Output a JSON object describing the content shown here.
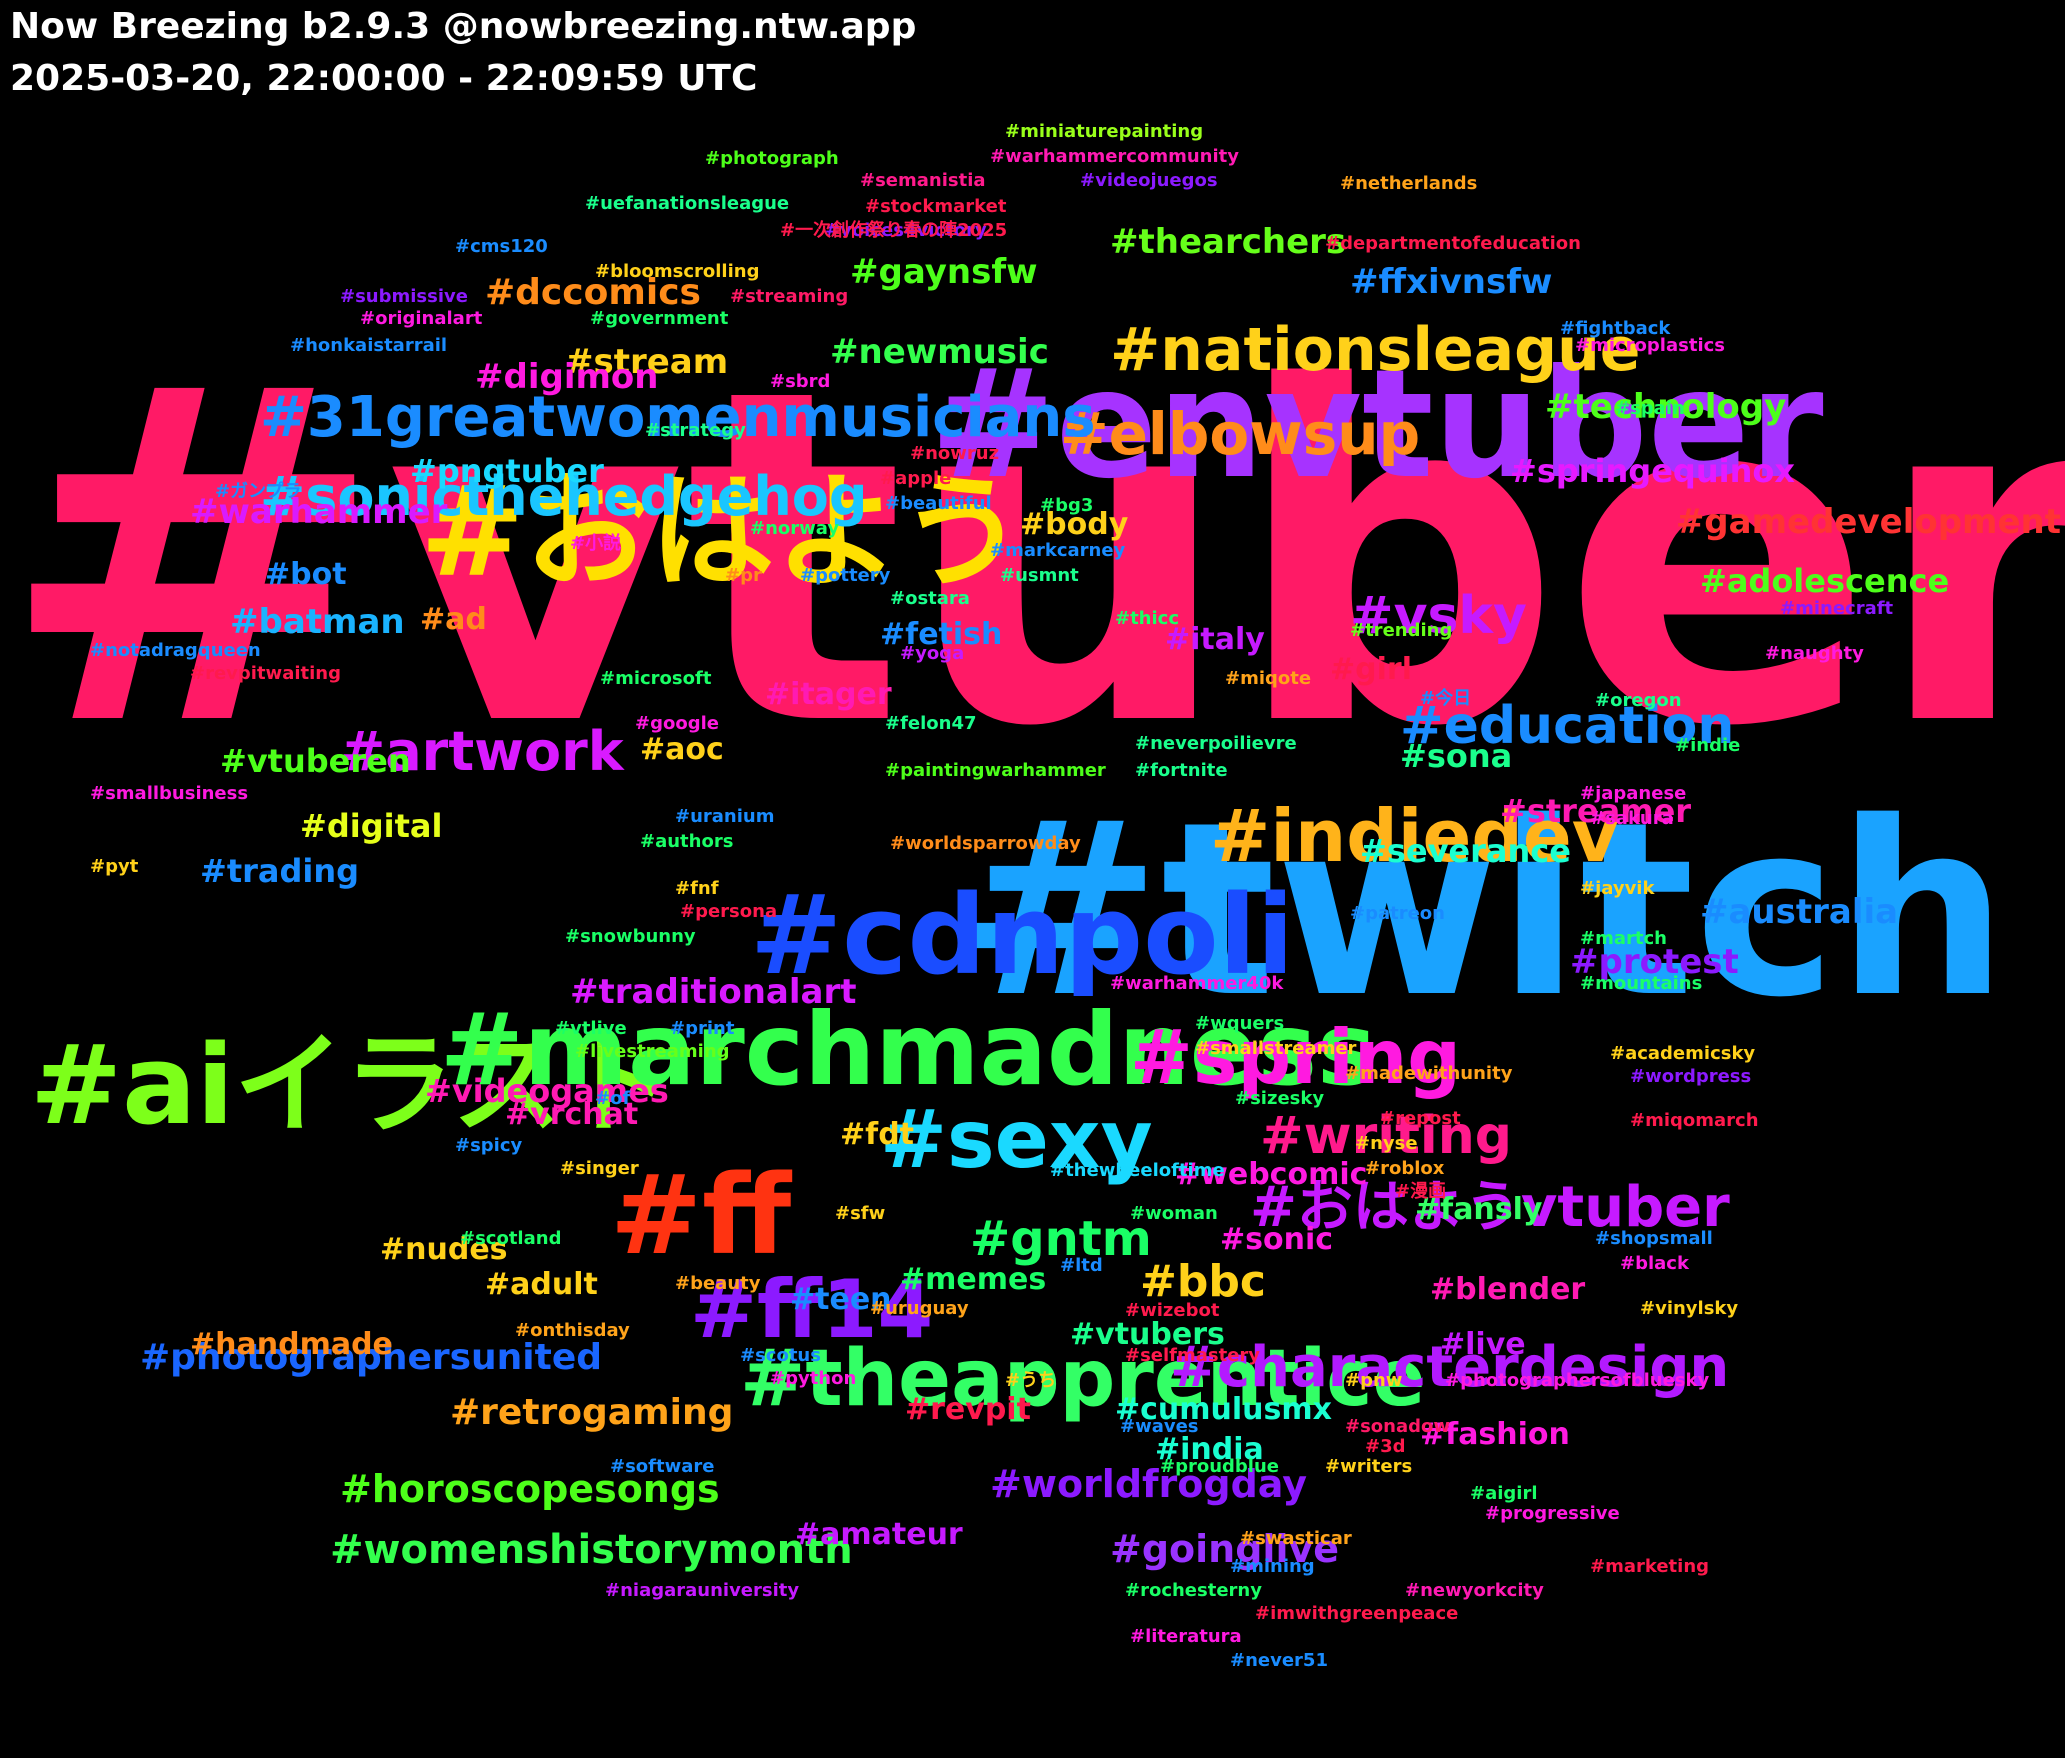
{
  "header": {
    "title": "Now Breezing b2.9.3 @nowbreezing.ntw.app",
    "subtitle": "2025-03-20, 22:00:00 - 22:09:59 UTC"
  },
  "words": [
    {
      "text": "#vtuber",
      "color": "#ff1a66"
    },
    {
      "text": "#twitch",
      "color": "#1aa3ff"
    },
    {
      "text": "#envtuber",
      "color": "#a633ff"
    },
    {
      "text": "#おはよう",
      "color": "#ffe000"
    },
    {
      "text": "#aiイラスト",
      "color": "#7dff1a"
    },
    {
      "text": "#marchmadness",
      "color": "#33ff4d"
    },
    {
      "text": "#cdnpoli",
      "color": "#1a4dff"
    },
    {
      "text": "#ff",
      "color": "#ff3311"
    },
    {
      "text": "#sexy",
      "color": "#1ad9ff"
    },
    {
      "text": "#spring",
      "color": "#ff1ae0"
    },
    {
      "text": "#indiedev",
      "color": "#ffb31a"
    },
    {
      "text": "#ff14",
      "color": "#8c1aff"
    },
    {
      "text": "#theapprentice",
      "color": "#33ff66"
    },
    {
      "text": "#nationsleague",
      "color": "#ffd11a"
    },
    {
      "text": "#elbowsup",
      "color": "#ff8c1a"
    },
    {
      "text": "#31greatwomenmusicians",
      "color": "#1a8cff"
    },
    {
      "text": "#sonicthehedgehog",
      "color": "#1ac6ff"
    },
    {
      "text": "#おはようvtuber",
      "color": "#c61aff"
    },
    {
      "text": "#characterdesign",
      "color": "#b31aff"
    },
    {
      "text": "#writing",
      "color": "#ff1a8c"
    },
    {
      "text": "#artwork",
      "color": "#d91aff"
    },
    {
      "text": "#education",
      "color": "#1a8cff"
    },
    {
      "text": "#vsky",
      "color": "#c61aff"
    },
    {
      "text": "#gntm",
      "color": "#1aff66"
    },
    {
      "text": "#bbc",
      "color": "#ffd11a"
    },
    {
      "text": "#womenshistorymonth",
      "color": "#33ff4d"
    },
    {
      "text": "#horoscopesongs",
      "color": "#4dff1a"
    },
    {
      "text": "#photographersunited",
      "color": "#1a66ff"
    },
    {
      "text": "#worldfrogday",
      "color": "#8c1aff"
    },
    {
      "text": "#goinglive",
      "color": "#9933ff"
    },
    {
      "text": "#retrogaming",
      "color": "#ffa31a"
    },
    {
      "text": "#gamedevelopment",
      "color": "#ff3333"
    },
    {
      "text": "#springequinox",
      "color": "#e61aff"
    },
    {
      "text": "#videogames",
      "color": "#ff1ab3"
    },
    {
      "text": "#thearchers",
      "color": "#66ff1a"
    },
    {
      "text": "#technology",
      "color": "#4dff1a"
    },
    {
      "text": "#dccomics",
      "color": "#ff8c1a"
    },
    {
      "text": "#ffxivnsfw",
      "color": "#1a8cff"
    },
    {
      "text": "#adolescence",
      "color": "#4dff1a"
    },
    {
      "text": "#traditionalart",
      "color": "#d91aff"
    },
    {
      "text": "#newmusic",
      "color": "#33ff4d"
    },
    {
      "text": "#warhammer",
      "color": "#d91aff"
    },
    {
      "text": "#pngtuber",
      "color": "#1ad9ff"
    },
    {
      "text": "#stream",
      "color": "#ffd11a"
    },
    {
      "text": "#gaynsfw",
      "color": "#4dff1a"
    },
    {
      "text": "#digimon",
      "color": "#ff1ae0"
    },
    {
      "text": "#batman",
      "color": "#1ab3ff"
    },
    {
      "text": "#vtuberen",
      "color": "#4dff1a"
    },
    {
      "text": "#trading",
      "color": "#1a8cff"
    },
    {
      "text": "#digital",
      "color": "#e6ff1a"
    },
    {
      "text": "#severance",
      "color": "#1affd1"
    },
    {
      "text": "#australia",
      "color": "#1a8cff"
    },
    {
      "text": "#protest",
      "color": "#8c1aff"
    },
    {
      "text": "#streamer",
      "color": "#ff1ab3"
    },
    {
      "text": "#sona",
      "color": "#1aff8c"
    },
    {
      "text": "#italy",
      "color": "#c61aff"
    },
    {
      "text": "#body",
      "color": "#ffd11a"
    },
    {
      "text": "#bot",
      "color": "#1a8cff"
    },
    {
      "text": "#fetish",
      "color": "#1a8cff"
    },
    {
      "text": "#itager",
      "color": "#ff1ab3"
    },
    {
      "text": "#ad",
      "color": "#ff8c1a"
    },
    {
      "text": "#aoc",
      "color": "#ffd11a"
    },
    {
      "text": "#girl",
      "color": "#ff1a4d"
    },
    {
      "text": "#vrchat",
      "color": "#ff1ab3"
    },
    {
      "text": "#fdt",
      "color": "#ffd11a"
    },
    {
      "text": "#webcomic",
      "color": "#ff1ae0"
    },
    {
      "text": "#sonic",
      "color": "#ff1ae0"
    },
    {
      "text": "#fansly",
      "color": "#33ff66"
    },
    {
      "text": "#nudes",
      "color": "#ffd11a"
    },
    {
      "text": "#adult",
      "color": "#ffd11a"
    },
    {
      "text": "#memes",
      "color": "#1aff66"
    },
    {
      "text": "#teen",
      "color": "#1a8cff"
    },
    {
      "text": "#vtubers",
      "color": "#1aff8c"
    },
    {
      "text": "#handmade",
      "color": "#ff8c1a"
    },
    {
      "text": "#blender",
      "color": "#ff1ab3"
    },
    {
      "text": "#live",
      "color": "#c61aff"
    },
    {
      "text": "#cumulusmx",
      "color": "#1affd1"
    },
    {
      "text": "#india",
      "color": "#1affd1"
    },
    {
      "text": "#revpit",
      "color": "#ff1a4d"
    },
    {
      "text": "#fashion",
      "color": "#ff1ae0"
    },
    {
      "text": "#amateur",
      "color": "#c61aff"
    },
    {
      "text": "#miniaturepainting",
      "color": "#99ff1a"
    },
    {
      "text": "#warhammercommunity",
      "color": "#ff1ab3"
    },
    {
      "text": "#photograph",
      "color": "#4dff1a"
    },
    {
      "text": "#semanistia",
      "color": "#ff1a8c"
    },
    {
      "text": "#videojuegos",
      "color": "#8c1aff"
    },
    {
      "text": "#netherlands",
      "color": "#ffa31a"
    },
    {
      "text": "#uefanationsleague",
      "color": "#1aff8c"
    },
    {
      "text": "#stockmarket",
      "color": "#ff1a4d"
    },
    {
      "text": "#voices4victory",
      "color": "#8c1aff"
    },
    {
      "text": "#一次創作祭り春の陣2025",
      "color": "#ff1a4d"
    },
    {
      "text": "#departmentofeducation",
      "color": "#ff1a4d"
    },
    {
      "text": "#cms120",
      "color": "#1a8cff"
    },
    {
      "text": "#bloomscrolling",
      "color": "#ffd11a"
    },
    {
      "text": "#submissive",
      "color": "#8c1aff"
    },
    {
      "text": "#streaming",
      "color": "#ff1a66"
    },
    {
      "text": "#originalart",
      "color": "#ff1ae0"
    },
    {
      "text": "#government",
      "color": "#1aff66"
    },
    {
      "text": "#fightback",
      "color": "#1a8cff"
    },
    {
      "text": "#honkaistarrail",
      "color": "#1a8cff"
    },
    {
      "text": "#microplastics",
      "color": "#ff1ae0"
    },
    {
      "text": "#sbrd",
      "color": "#ff1ae0"
    },
    {
      "text": "#spain",
      "color": "#1aff66"
    },
    {
      "text": "#strategy",
      "color": "#1aff8c"
    },
    {
      "text": "#nowruz",
      "color": "#ff1a4d"
    },
    {
      "text": "#apple",
      "color": "#ff1a4d"
    },
    {
      "text": "#ガンプラ",
      "color": "#1a8cff"
    },
    {
      "text": "#beautiful",
      "color": "#1a8cff"
    },
    {
      "text": "#bg3",
      "color": "#1aff66"
    },
    {
      "text": "#norway",
      "color": "#1aff66"
    },
    {
      "text": "#小説",
      "color": "#ff1ae0"
    },
    {
      "text": "#markcarney",
      "color": "#1a8cff"
    },
    {
      "text": "#usmnt",
      "color": "#1aff8c"
    },
    {
      "text": "#pr",
      "color": "#ff8c1a"
    },
    {
      "text": "#pottery",
      "color": "#1a8cff"
    },
    {
      "text": "#ostara",
      "color": "#1aff8c"
    },
    {
      "text": "#minecraft",
      "color": "#8c1aff"
    },
    {
      "text": "#thicc",
      "color": "#1aff66"
    },
    {
      "text": "#trending",
      "color": "#66ff1a"
    },
    {
      "text": "#notadragqueen",
      "color": "#1a8cff"
    },
    {
      "text": "#yoga",
      "color": "#c61aff"
    },
    {
      "text": "#naughty",
      "color": "#ff1ae0"
    },
    {
      "text": "#revpitwaiting",
      "color": "#ff1a4d"
    },
    {
      "text": "#microsoft",
      "color": "#1aff66"
    },
    {
      "text": "#miqote",
      "color": "#ffa31a"
    },
    {
      "text": "#今日",
      "color": "#1a8cff"
    },
    {
      "text": "#oregon",
      "color": "#1aff8c"
    },
    {
      "text": "#google",
      "color": "#ff1ae0"
    },
    {
      "text": "#felon47",
      "color": "#1aff8c"
    },
    {
      "text": "#neverpoilievre",
      "color": "#1aff8c"
    },
    {
      "text": "#indie",
      "color": "#1aff66"
    },
    {
      "text": "#fortnite",
      "color": "#1aff8c"
    },
    {
      "text": "#paintingwarhammer",
      "color": "#4dff1a"
    },
    {
      "text": "#smallbusiness",
      "color": "#ff1ae0"
    },
    {
      "text": "#japanese",
      "color": "#ff1ae0"
    },
    {
      "text": "#uranium",
      "color": "#1a8cff"
    },
    {
      "text": "#sakura",
      "color": "#ff1ae0"
    },
    {
      "text": "#authors",
      "color": "#1aff66"
    },
    {
      "text": "#worldsparrowday",
      "color": "#ff8c1a"
    },
    {
      "text": "#pyt",
      "color": "#ffd11a"
    },
    {
      "text": "#fnf",
      "color": "#ffd11a"
    },
    {
      "text": "#jayvik",
      "color": "#ffd11a"
    },
    {
      "text": "#persona",
      "color": "#ff1a4d"
    },
    {
      "text": "#patreon",
      "color": "#1a8cff"
    },
    {
      "text": "#snowbunny",
      "color": "#1aff66"
    },
    {
      "text": "#martch",
      "color": "#1aff66"
    },
    {
      "text": "#mountains",
      "color": "#1aff66"
    },
    {
      "text": "#warhammer40k",
      "color": "#ff1ae0"
    },
    {
      "text": "#wquers",
      "color": "#1aff66"
    },
    {
      "text": "#vtlive",
      "color": "#1aff66"
    },
    {
      "text": "#print",
      "color": "#1a8cff"
    },
    {
      "text": "#smallstreamer",
      "color": "#ffd11a"
    },
    {
      "text": "#livestreaming",
      "color": "#66ff1a"
    },
    {
      "text": "#academicsky",
      "color": "#ffd11a"
    },
    {
      "text": "#madewithunity",
      "color": "#ffa31a"
    },
    {
      "text": "#wordpress",
      "color": "#8c1aff"
    },
    {
      "text": "#of",
      "color": "#1a8cff"
    },
    {
      "text": "#sizesky",
      "color": "#1aff66"
    },
    {
      "text": "#repost",
      "color": "#ff1a4d"
    },
    {
      "text": "#miqomarch",
      "color": "#ff1a4d"
    },
    {
      "text": "#nyse",
      "color": "#ffd11a"
    },
    {
      "text": "#spicy",
      "color": "#1a8cff"
    },
    {
      "text": "#singer",
      "color": "#ffd11a"
    },
    {
      "text": "#roblox",
      "color": "#ffa31a"
    },
    {
      "text": "#thewheeloftime",
      "color": "#1ad9ff"
    },
    {
      "text": "#漫画",
      "color": "#ff1a4d"
    },
    {
      "text": "#sfw",
      "color": "#ffd11a"
    },
    {
      "text": "#woman",
      "color": "#1aff66"
    },
    {
      "text": "#scotland",
      "color": "#1aff66"
    },
    {
      "text": "#shopsmall",
      "color": "#1a8cff"
    },
    {
      "text": "#black",
      "color": "#ff1ae0"
    },
    {
      "text": "#ltd",
      "color": "#1a8cff"
    },
    {
      "text": "#beauty",
      "color": "#ffa31a"
    },
    {
      "text": "#uruguay",
      "color": "#ffa31a"
    },
    {
      "text": "#vinylsky",
      "color": "#ffd11a"
    },
    {
      "text": "#wizebot",
      "color": "#ff1a4d"
    },
    {
      "text": "#onthisday",
      "color": "#ffa31a"
    },
    {
      "text": "#scotus",
      "color": "#1a8cff"
    },
    {
      "text": "#selfmastery",
      "color": "#ff1a4d"
    },
    {
      "text": "#python",
      "color": "#ff1ae0"
    },
    {
      "text": "#うち",
      "color": "#ffd11a"
    },
    {
      "text": "#pnw",
      "color": "#ffd11a"
    },
    {
      "text": "#photographersofbluesky",
      "color": "#ff1ae0"
    },
    {
      "text": "#waves",
      "color": "#1a8cff"
    },
    {
      "text": "#sonadow",
      "color": "#ff1a66"
    },
    {
      "text": "#3d",
      "color": "#ff1a4d"
    },
    {
      "text": "#software",
      "color": "#1a8cff"
    },
    {
      "text": "#proudblue",
      "color": "#1aff66"
    },
    {
      "text": "#writers",
      "color": "#ffd11a"
    },
    {
      "text": "#aigirl",
      "color": "#1aff66"
    },
    {
      "text": "#progressive",
      "color": "#ff1ae0"
    },
    {
      "text": "#swasticar",
      "color": "#ffa31a"
    },
    {
      "text": "#mining",
      "color": "#1a8cff"
    },
    {
      "text": "#marketing",
      "color": "#ff1a4d"
    },
    {
      "text": "#niagarauniversity",
      "color": "#c61aff"
    },
    {
      "text": "#rochesterny",
      "color": "#1aff66"
    },
    {
      "text": "#newyorkcity",
      "color": "#ff1ab3"
    },
    {
      "text": "#imwithgreenpeace",
      "color": "#ff1a4d"
    },
    {
      "text": "#literatura",
      "color": "#ff1ae0"
    },
    {
      "text": "#never51",
      "color": "#1a8cff"
    }
  ]
}
